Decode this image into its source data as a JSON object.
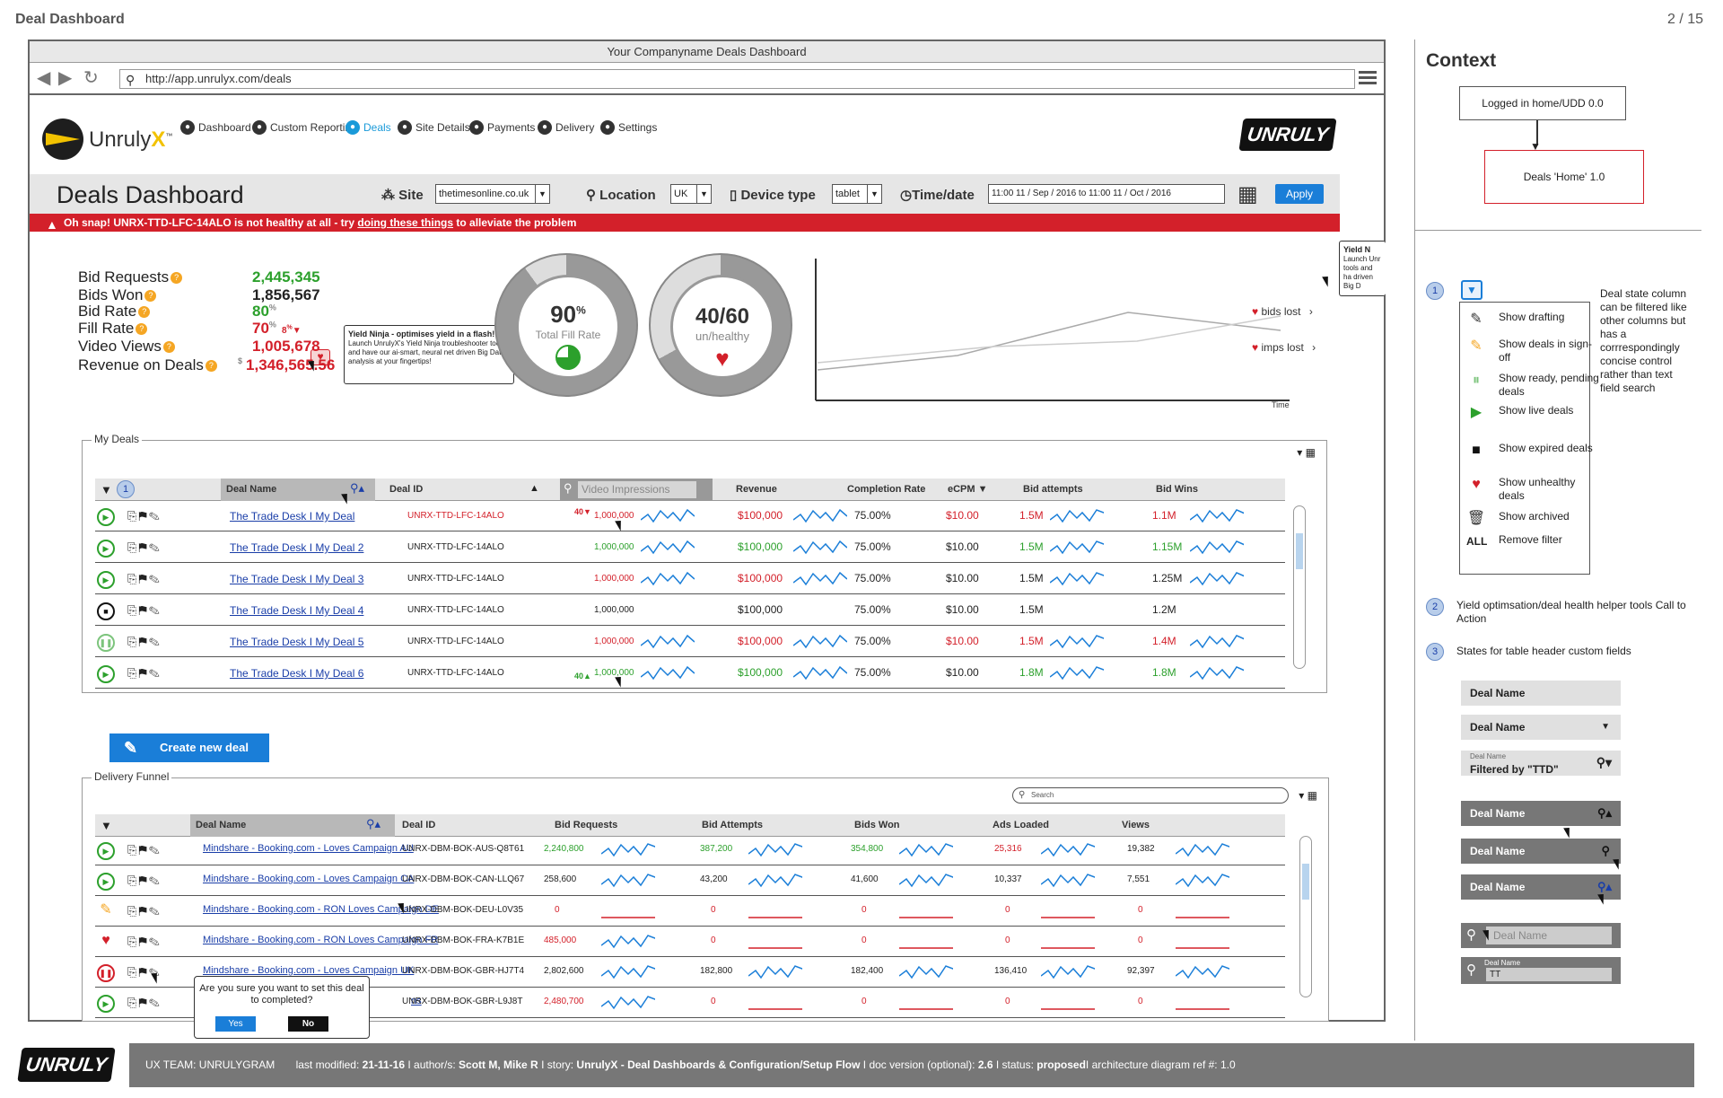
{
  "doc": {
    "title": "Deal Dashboard",
    "page": "2 / 15"
  },
  "browser": {
    "title": "Your Companyname Deals Dashboard",
    "url": "http://app.unrulyx.com/deals"
  },
  "logo": {
    "word": "Unruly",
    "x": "X",
    "tm": "™"
  },
  "nav": [
    {
      "label": "Dashboard",
      "icon": "gauge-icon"
    },
    {
      "label": "Custom Reporting",
      "icon": "clock-icon"
    },
    {
      "label": "Deals",
      "icon": "deals-icon"
    },
    {
      "label": "Site Details",
      "icon": "globe-icon"
    },
    {
      "label": "Payments",
      "icon": "dollar-icon"
    },
    {
      "label": "Delivery",
      "icon": "truck-icon"
    },
    {
      "label": "Settings",
      "icon": "wrench-icon"
    }
  ],
  "brand": "UNRULY",
  "filters": {
    "page_title": "Deals Dashboard",
    "site_label": "Site",
    "site_value": "thetimesonline.co.uk",
    "location_label": "Location",
    "location_value": "UK",
    "device_label": "Device type",
    "device_value": "tablet",
    "time_label": "Time/date",
    "time_value": "11:00 11 / Sep / 2016 to  11:00 11 / Oct / 2016",
    "apply": "Apply"
  },
  "alert": {
    "prefix": "Oh snap! UNRX-TTD-LFC-14ALO is not healthy at all - try ",
    "link": "doing these things",
    "suffix": " to alleviate the problem"
  },
  "kpis": [
    {
      "label": "Bid Requests",
      "value": "2,445,345",
      "color": "green"
    },
    {
      "label": "Bids Won",
      "value": "1,856,567",
      "color": "dark"
    },
    {
      "label": "Bid Rate",
      "value": "80",
      "suffix": "%",
      "color": "green"
    },
    {
      "label": "Fill Rate",
      "value": "70",
      "suffix": "%",
      "delta": "8",
      "delta_suffix": "%",
      "color": "red"
    },
    {
      "label": "Video Views",
      "value": "1,005,678",
      "color": "red"
    },
    {
      "label": "Revenue on Deals",
      "value": "1,346,565.56",
      "currency": "$",
      "color": "red"
    }
  ],
  "tooltip": {
    "title": "Yield Ninja - optimises yield in a flash!",
    "body": "Launch UnrulyX's Yield Ninja troubleshooter tools and have our ai-smart, neural net driven Big Data analysis at your fingertips!"
  },
  "tooltip2": {
    "title": "Yield N",
    "body": "Launch Unr tools and ha driven Big D"
  },
  "donut1": {
    "value": "90",
    "unit": "%",
    "label": "Total Fill Rate",
    "fraction": 0.9
  },
  "donut2": {
    "value": "40/60",
    "label": "un/healthy",
    "fraction": 0.67
  },
  "line_chart": {
    "legend": [
      "bids lost",
      "imps lost"
    ],
    "xlabel": "Time"
  },
  "my_deals": {
    "title": "My Deals",
    "search_placeholder": "Video Impressions",
    "headers": {
      "name": "Deal Name",
      "id": "Deal ID",
      "revenue": "Revenue",
      "completion": "Completion Rate",
      "ecpm": "eCPM",
      "attempts": "Bid attempts",
      "wins": "Bid Wins"
    },
    "filter_badge": "1",
    "rows": [
      {
        "state": "live",
        "name": "The Trade Desk I My Deal",
        "id": "UNRX-TTD-LFC-14ALO",
        "imp_delta": "40",
        "imp_dir": "down",
        "imps": "1,000,000",
        "imps_color": "red",
        "revenue": "$100,000",
        "rev_color": "red",
        "completion": "75.00%",
        "ecpm": "$10.00",
        "ecpm_color": "red",
        "attempts": "1.5M",
        "att_color": "red",
        "wins": "1.1M",
        "wins_color": "red"
      },
      {
        "state": "live",
        "name": "The Trade Desk I My Deal 2",
        "id": "UNRX-TTD-LFC-14ALO",
        "imps": "1,000,000",
        "imps_color": "green",
        "revenue": "$100,000",
        "rev_color": "green",
        "completion": "75.00%",
        "ecpm": "$10.00",
        "ecpm_color": "dark",
        "attempts": "1.5M",
        "att_color": "green",
        "wins": "1.15M",
        "wins_color": "green"
      },
      {
        "state": "live",
        "name": "The Trade Desk I My Deal 3",
        "id": "UNRX-TTD-LFC-14ALO",
        "imps": "1,000,000",
        "imps_color": "red",
        "revenue": "$100,000",
        "rev_color": "red",
        "completion": "75.00%",
        "ecpm": "$10.00",
        "ecpm_color": "dark",
        "attempts": "1.5M",
        "att_color": "dark",
        "wins": "1.25M",
        "wins_color": "dark"
      },
      {
        "state": "expired",
        "name": "The Trade Desk I My Deal 4",
        "id": "UNRX-TTD-LFC-14ALO",
        "imps": "1,000,000",
        "imps_color": "dark",
        "revenue": "$100,000",
        "rev_color": "dark",
        "completion": "75.00%",
        "ecpm": "$10.00",
        "ecpm_color": "dark",
        "attempts": "1.5M",
        "att_color": "dark",
        "wins": "1.2M",
        "wins_color": "dark",
        "flat": true
      },
      {
        "state": "paused",
        "name": "The Trade Desk I My Deal 5",
        "id": "UNRX-TTD-LFC-14ALO",
        "imps": "1,000,000",
        "imps_color": "red",
        "revenue": "$100,000",
        "rev_color": "red",
        "completion": "75.00%",
        "ecpm": "$10.00",
        "ecpm_color": "red",
        "attempts": "1.5M",
        "att_color": "red",
        "wins": "1.4M",
        "wins_color": "red"
      },
      {
        "state": "live",
        "name": "The Trade Desk I My Deal 6",
        "id": "UNRX-TTD-LFC-14ALO",
        "imp_delta": "40",
        "imp_dir": "up",
        "imps": "1,000,000",
        "imps_color": "green",
        "revenue": "$100,000",
        "rev_color": "green",
        "completion": "75.00%",
        "ecpm": "$10.00",
        "ecpm_color": "dark",
        "attempts": "1.8M",
        "att_color": "green",
        "wins": "1.8M",
        "wins_color": "green"
      }
    ]
  },
  "create_button": "Create new deal",
  "funnel": {
    "title": "Delivery Funnel",
    "search_placeholder": "Search",
    "headers": {
      "name": "Deal Name",
      "id": "Deal ID",
      "requests": "Bid Requests",
      "attempts": "Bid Attempts",
      "won": "Bids Won",
      "loaded": "Ads Loaded",
      "views": "Views"
    },
    "rows": [
      {
        "state": "live",
        "name": "Mindshare - Booking.com - Loves Campaign AU",
        "id": "UNRX-DBM-BOK-AUS-Q8T61",
        "requests": "2,240,800",
        "req_c": "green",
        "attempts": "387,200",
        "att_c": "green",
        "won": "354,800",
        "won_c": "green",
        "loaded": "25,316",
        "load_c": "red",
        "views": "19,382",
        "views_c": "dark"
      },
      {
        "state": "live",
        "name": "Mindshare - Booking.com - Loves Campaign CA",
        "id": "UNRX-DBM-BOK-CAN-LLQ67",
        "requests": "258,600",
        "req_c": "dark",
        "attempts": "43,200",
        "att_c": "dark",
        "won": "41,600",
        "won_c": "dark",
        "loaded": "10,337",
        "load_c": "dark",
        "views": "7,551",
        "views_c": "dark"
      },
      {
        "state": "draft",
        "name": "Mindshare - Booking.com - RON Loves Campaign DE",
        "id": "UNRX-DBM-BOK-DEU-L0V35",
        "requests": "0",
        "req_c": "red",
        "attempts": "0",
        "att_c": "red",
        "won": "0",
        "won_c": "red",
        "loaded": "0",
        "load_c": "red",
        "views": "0",
        "views_c": "red",
        "flat": true
      },
      {
        "state": "unhealthy",
        "name": "Mindshare - Booking.com - RON Loves Campaign FR",
        "id": "UNRX-DBM-BOK-FRA-K7B1E",
        "requests": "485,000",
        "req_c": "red",
        "attempts": "0",
        "att_c": "red",
        "won": "0",
        "won_c": "red",
        "loaded": "0",
        "load_c": "red",
        "views": "0",
        "views_c": "red",
        "flat2": true
      },
      {
        "state": "paused-red",
        "name": "Mindshare - Booking.com - Loves Campaign UK",
        "id": "UNRX-DBM-BOK-GBR-HJ7T4",
        "requests": "2,802,600",
        "req_c": "dark",
        "attempts": "182,800",
        "att_c": "dark",
        "won": "182,400",
        "won_c": "dark",
        "loaded": "136,410",
        "load_c": "dark",
        "views": "92,397",
        "views_c": "dark"
      },
      {
        "state": "live",
        "name": "ns",
        "id": "UNRX-DBM-BOK-GBR-L9J8T",
        "requests": "2,480,700",
        "req_c": "red",
        "attempts": "0",
        "att_c": "red",
        "won": "0",
        "won_c": "red",
        "loaded": "0",
        "load_c": "red",
        "views": "0",
        "views_c": "red",
        "flat2": true
      }
    ]
  },
  "confirm": {
    "text": "Are you sure you want to set this deal to completed?",
    "yes": "Yes",
    "no": "No"
  },
  "context": {
    "heading": "Context",
    "flow1": "Logged in home/UDD 0.0",
    "flow2": "Deals 'Home' 1.0",
    "note1": "Deal state column can be filtered like other columns but has a corrrespondingly concise control rather than text field search",
    "filters": [
      {
        "label": "Show drafting",
        "icon": "pencil-square-icon"
      },
      {
        "label": "Show deals in sign-off",
        "icon": "edit-note-icon"
      },
      {
        "label": "Show ready, pending deals",
        "icon": "pause-circle-icon"
      },
      {
        "label": "Show live deals",
        "icon": "play-circle-icon"
      },
      {
        "label": "Show expired deals",
        "icon": "stop-circle-icon"
      },
      {
        "label": "Show unhealthy deals",
        "icon": "heart-pulse-icon"
      },
      {
        "label": "Show archived",
        "icon": "trash-icon"
      },
      {
        "label": "Remove filter",
        "icon": "all-text-icon",
        "prefix": "ALL"
      }
    ],
    "note2": "Yield optimsation/deal health helper tools Call to Action",
    "note3": "States for table header custom fields",
    "header_states": [
      "Deal Name",
      "Deal Name",
      "Deal Name",
      "Deal Name",
      "Deal Name",
      "Deal Name"
    ],
    "filtered_small": "Deal Name",
    "filtered_text": "Filtered by \"TTD\"",
    "search_placeholder": "Deal Name",
    "search_small": "Deal Name",
    "search_value": "TT"
  },
  "footer": {
    "team": "UX TEAM: UNRULYGRAM",
    "modified_label": "last modified: ",
    "modified": "21-11-16",
    "authors_label": " I  author/s: ",
    "authors": "Scott M, Mike R",
    "story_label": " I story: ",
    "story": "UnrulyX - Deal Dashboards & Configuration/Setup Flow",
    "version_label": " I doc version (optional): ",
    "version": "2.6",
    "status_label": " I status: ",
    "status": "proposed",
    "arch": "I architecture diagram ref #: 1.0"
  },
  "bullets": [
    "1",
    "2",
    "3"
  ]
}
